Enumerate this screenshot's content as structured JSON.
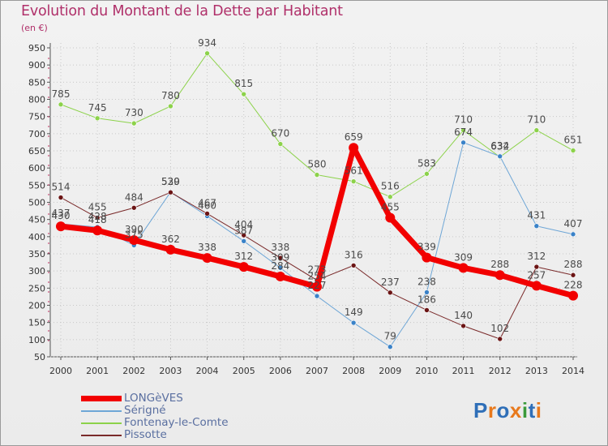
{
  "title": "Evolution du Montant de la Dette par Habitant",
  "unit": "(en €)",
  "logo_text": "Proxiti",
  "chart_data": {
    "type": "line",
    "x": [
      "2000",
      "2001",
      "2002",
      "2003",
      "2004",
      "2005",
      "2006",
      "2007",
      "2008",
      "2009",
      "2010",
      "2011",
      "2012",
      "2013",
      "2014"
    ],
    "ylim": [
      50,
      950
    ],
    "yticks": [
      50,
      100,
      150,
      200,
      250,
      300,
      350,
      400,
      450,
      500,
      550,
      600,
      650,
      700,
      750,
      800,
      850,
      900,
      950
    ],
    "grid": "horizontal and vertical dotted",
    "legend_position": "bottom-left",
    "series": [
      {
        "name": "Fontenay-le-Comte",
        "color": "#8cd24a",
        "marker": "#8cd24a",
        "width": 1,
        "values": [
          785,
          745,
          730,
          780,
          934,
          815,
          670,
          580,
          561,
          516,
          583,
          710,
          632,
          710,
          651
        ]
      },
      {
        "name": "Sérigné",
        "color": "#6ea6d6",
        "marker": "#3a82c8",
        "width": 1,
        "values": [
          437,
          428,
          375,
          530,
          460,
          387,
          309,
          227,
          149,
          79,
          238,
          674,
          634,
          431,
          407
        ]
      },
      {
        "name": "Pissotte",
        "color": "#7a2a2a",
        "marker": "#6b1414",
        "width": 1,
        "values": [
          514,
          455,
          484,
          529,
          467,
          404,
          338,
          273,
          316,
          237,
          186,
          140,
          102,
          312,
          288
        ]
      },
      {
        "name": "LONGèVES",
        "color": "#f20000",
        "marker": "#f20000",
        "width": 7,
        "values": [
          430,
          418,
          390,
          362,
          338,
          312,
          284,
          254,
          659,
          455,
          339,
          309,
          288,
          257,
          228
        ]
      }
    ],
    "data_labels": [
      {
        "series": "Fontenay-le-Comte",
        "labels": [
          "785",
          "745",
          "730",
          "780",
          "934",
          "815",
          "670",
          "580",
          "561",
          "516",
          "583",
          "710",
          "632",
          "710",
          "651"
        ]
      },
      {
        "series": "Sérigné",
        "labels": [
          "437",
          "428",
          "375",
          "530",
          "460",
          "387",
          "309",
          "227",
          "149",
          "79",
          "238",
          "674",
          "634",
          "431",
          "407"
        ]
      },
      {
        "series": "Pissotte",
        "labels": [
          "514",
          "455",
          "484",
          "529",
          "467",
          "404",
          "338",
          "273",
          "316",
          "237",
          "186",
          "140",
          "102",
          "312",
          "288"
        ]
      },
      {
        "series": "LONGèVES",
        "labels": [
          "430",
          "418",
          "390",
          "362",
          "338",
          "312",
          "284",
          "254",
          "659",
          "455",
          "339",
          "309",
          "288",
          "257",
          "228"
        ]
      }
    ]
  },
  "legend": [
    {
      "label": "LONGèVES",
      "color": "#f20000",
      "thick": true
    },
    {
      "label": "Sérigné",
      "color": "#6ea6d6",
      "thick": false
    },
    {
      "label": "Fontenay-le-Comte",
      "color": "#8cd24a",
      "thick": false
    },
    {
      "label": "Pissotte",
      "color": "#7a2a2a",
      "thick": false
    }
  ]
}
